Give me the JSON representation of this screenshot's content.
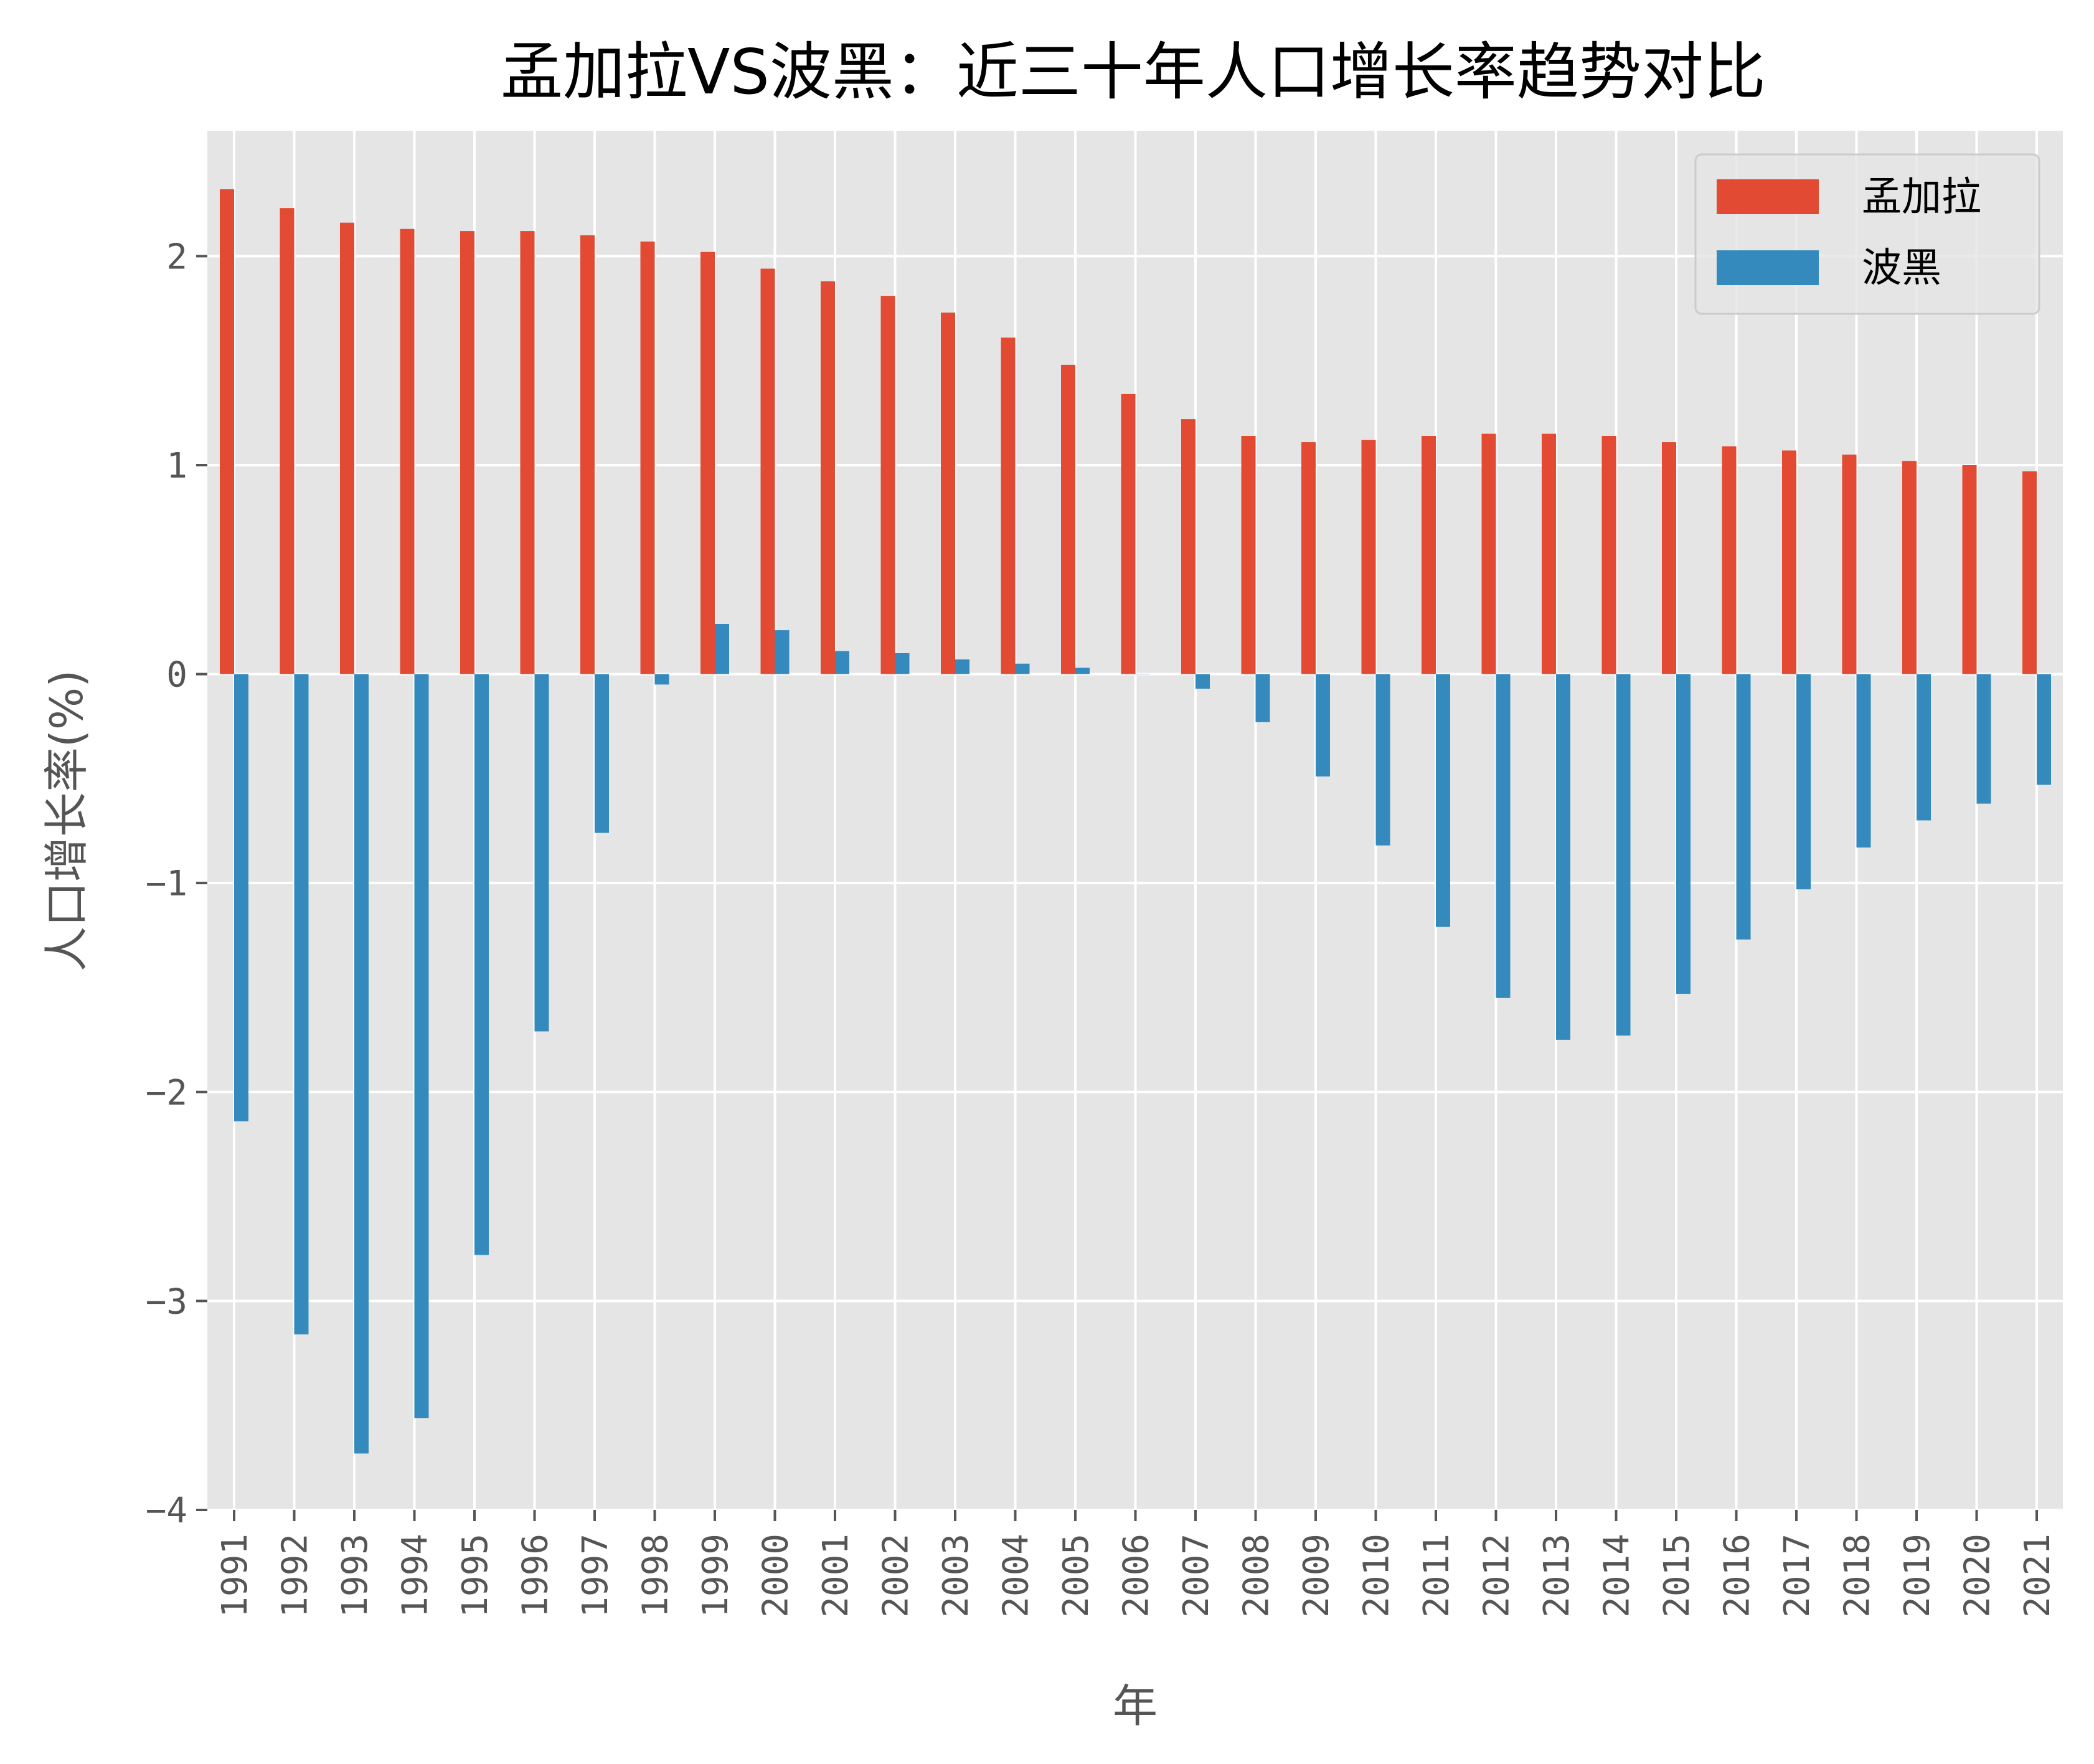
{
  "chart_data": {
    "type": "bar",
    "title": "孟加拉VS波黑：近三十年人口增长率趋势对比",
    "xlabel": "年",
    "ylabel": "人口增长率(%)",
    "ylim": [
      -4,
      2.6
    ],
    "yticks": [
      -4,
      -3,
      -2,
      -1,
      0,
      1,
      2
    ],
    "ytick_labels": [
      "−4",
      "−3",
      "−2",
      "−1",
      "0",
      "1",
      "2"
    ],
    "grid": true,
    "legend_position": "top-right",
    "categories": [
      "1991",
      "1992",
      "1993",
      "1994",
      "1995",
      "1996",
      "1997",
      "1998",
      "1999",
      "2000",
      "2001",
      "2002",
      "2003",
      "2004",
      "2005",
      "2006",
      "2007",
      "2008",
      "2009",
      "2010",
      "2011",
      "2012",
      "2013",
      "2014",
      "2015",
      "2016",
      "2017",
      "2018",
      "2019",
      "2020",
      "2021"
    ],
    "series": [
      {
        "name": "孟加拉",
        "color": "#E24A33",
        "values": [
          2.32,
          2.23,
          2.16,
          2.13,
          2.12,
          2.12,
          2.1,
          2.07,
          2.02,
          1.94,
          1.88,
          1.81,
          1.73,
          1.61,
          1.48,
          1.34,
          1.22,
          1.14,
          1.11,
          1.12,
          1.14,
          1.15,
          1.15,
          1.14,
          1.11,
          1.09,
          1.07,
          1.05,
          1.02,
          1.0,
          0.97
        ]
      },
      {
        "name": "波黑",
        "color": "#348ABD",
        "values": [
          -2.14,
          -3.16,
          -3.73,
          -3.56,
          -2.78,
          -1.71,
          -0.76,
          -0.05,
          0.24,
          0.21,
          0.11,
          0.1,
          0.07,
          0.05,
          0.03,
          0.0,
          -0.07,
          -0.23,
          -0.49,
          -0.82,
          -1.21,
          -1.55,
          -1.75,
          -1.73,
          -1.53,
          -1.27,
          -1.03,
          -0.83,
          -0.7,
          -0.62,
          -0.53
        ]
      }
    ]
  }
}
